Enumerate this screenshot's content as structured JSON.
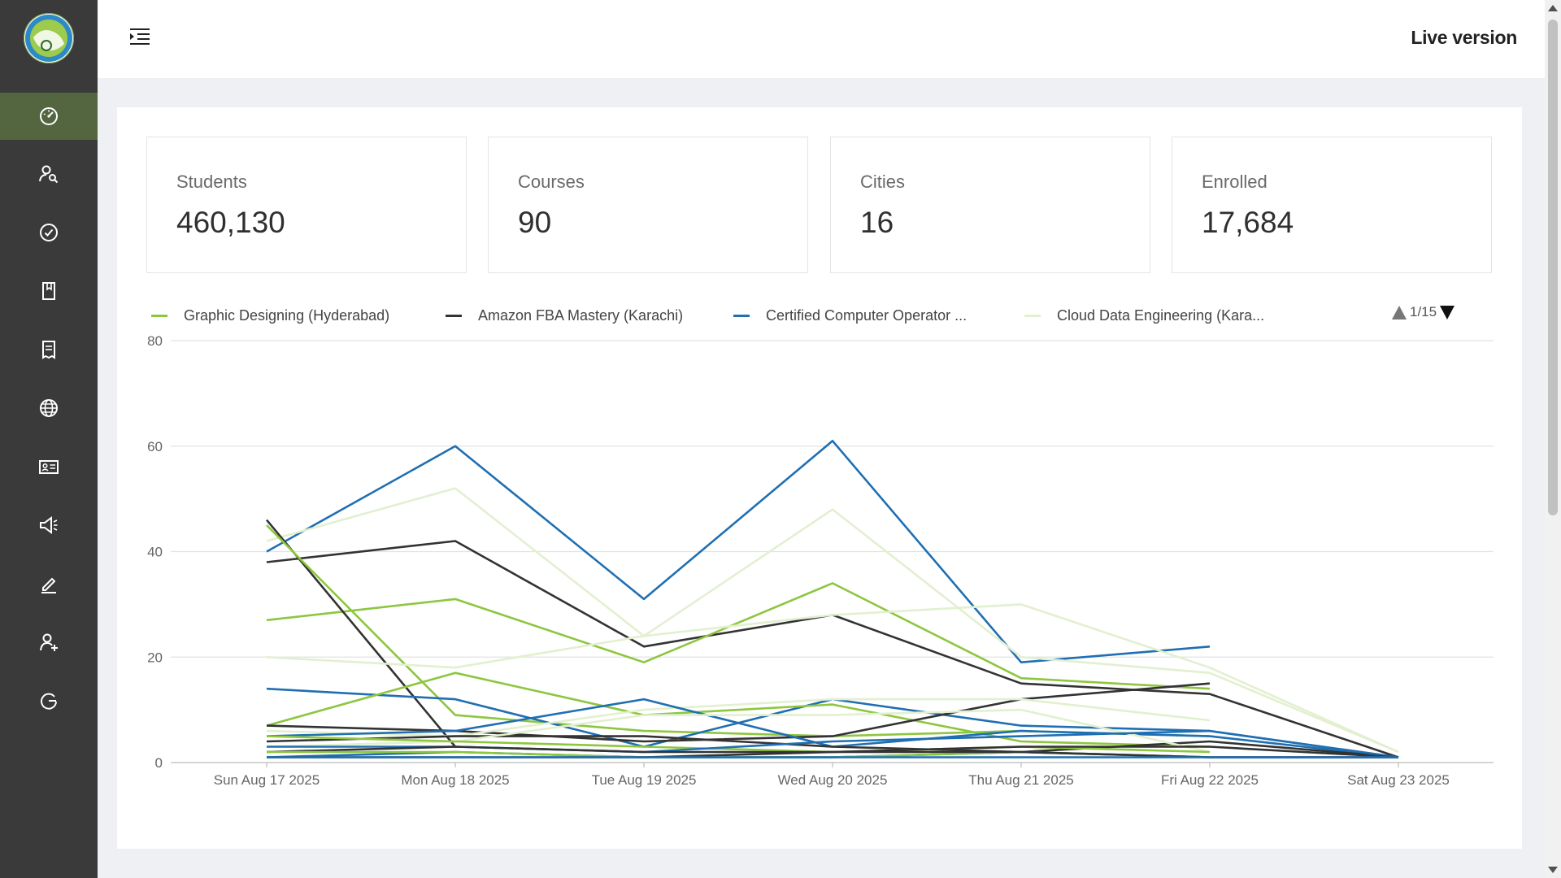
{
  "header": {
    "live_version": "Live version",
    "menu_icon": "indent-menu-icon"
  },
  "sidebar": {
    "logo": "app-logo",
    "items": [
      {
        "name": "dashboard",
        "icon": "speedometer-icon",
        "active": true
      },
      {
        "name": "users",
        "icon": "user-search-icon",
        "active": false
      },
      {
        "name": "verify",
        "icon": "check-circle-icon",
        "active": false
      },
      {
        "name": "bookmark",
        "icon": "bookmark-icon",
        "active": false
      },
      {
        "name": "receipts",
        "icon": "receipt-icon",
        "active": false
      },
      {
        "name": "globe",
        "icon": "globe-icon",
        "active": false
      },
      {
        "name": "id-card",
        "icon": "id-card-icon",
        "active": false
      },
      {
        "name": "announcements",
        "icon": "megaphone-icon",
        "active": false
      },
      {
        "name": "edit",
        "icon": "pencil-icon",
        "active": false
      },
      {
        "name": "add-user",
        "icon": "user-plus-icon",
        "active": false
      },
      {
        "name": "logout",
        "icon": "power-refresh-icon",
        "active": false
      }
    ],
    "active_color": "#54663f",
    "background": "#3a3a3a"
  },
  "stats": [
    {
      "label": "Students",
      "value": "460,130"
    },
    {
      "label": "Courses",
      "value": "90"
    },
    {
      "label": "Cities",
      "value": "16"
    },
    {
      "label": "Enrolled",
      "value": "17,684"
    }
  ],
  "chart_data": {
    "type": "line",
    "categories": [
      "Sun Aug 17 2025",
      "Mon Aug 18 2025",
      "Tue Aug 19 2025",
      "Wed Aug 20 2025",
      "Thu Aug 21 2025",
      "Fri Aug 22 2025",
      "Sat Aug 23 2025"
    ],
    "y_ticks": [
      "0",
      "20",
      "40",
      "60",
      "80"
    ],
    "ylim": [
      0,
      80
    ],
    "grid": true,
    "legend_position": "top",
    "legend": {
      "items": [
        {
          "label": "Graphic Designing (Hyderabad)",
          "color": "#8dc63f"
        },
        {
          "label": "Amazon FBA Mastery (Karachi)",
          "color": "#333333"
        },
        {
          "label": "Certified Computer Operator ...",
          "color": "#1f6fb2"
        },
        {
          "label": "Cloud Data Engineering (Kara...",
          "color": "#e2f0d0"
        }
      ],
      "page_text": "1/15"
    },
    "series": [
      {
        "color": "#1f6fb2",
        "values": [
          40,
          60,
          31,
          61,
          19,
          22,
          null
        ]
      },
      {
        "color": "#e2f0d0",
        "values": [
          42,
          52,
          24,
          48,
          20,
          17,
          2
        ]
      },
      {
        "color": "#333333",
        "values": [
          38,
          42,
          22,
          28,
          15,
          13,
          1
        ]
      },
      {
        "color": "#8dc63f",
        "values": [
          27,
          31,
          19,
          34,
          16,
          14,
          null
        ]
      },
      {
        "color": "#333333",
        "values": [
          46,
          3,
          null,
          null,
          null,
          null,
          null
        ]
      },
      {
        "color": "#8dc63f",
        "values": [
          45,
          9,
          6,
          5,
          6,
          5,
          null
        ]
      },
      {
        "color": "#e2f0d0",
        "values": [
          20,
          18,
          24,
          28,
          30,
          18,
          2
        ]
      },
      {
        "color": "#1f6fb2",
        "values": [
          14,
          12,
          3,
          12,
          7,
          6,
          1
        ]
      },
      {
        "color": "#8dc63f",
        "values": [
          7,
          17,
          9,
          11,
          4,
          3,
          null
        ]
      },
      {
        "color": "#333333",
        "values": [
          7,
          6,
          4,
          5,
          12,
          15,
          null
        ]
      },
      {
        "color": "#e2f0d0",
        "values": [
          6,
          5,
          10,
          12,
          12,
          8,
          null
        ]
      },
      {
        "color": "#1f6fb2",
        "values": [
          5,
          6,
          12,
          3,
          6,
          5,
          1
        ]
      },
      {
        "color": "#333333",
        "values": [
          4,
          5,
          5,
          3,
          2,
          4,
          1
        ]
      },
      {
        "color": "#e2f0d0",
        "values": [
          3,
          4,
          9,
          9,
          10,
          2,
          null
        ]
      },
      {
        "color": "#8dc63f",
        "values": [
          5,
          4,
          3,
          2,
          3,
          2,
          null
        ]
      },
      {
        "color": "#1f6fb2",
        "values": [
          3,
          3,
          2,
          4,
          5,
          6,
          1
        ]
      },
      {
        "color": "#333333",
        "values": [
          2,
          3,
          2,
          2,
          3,
          3,
          1
        ]
      },
      {
        "color": "#1f6fb2",
        "values": [
          1,
          2,
          1,
          1,
          2,
          1,
          1
        ]
      },
      {
        "color": "#8dc63f",
        "values": [
          2,
          2,
          1,
          1,
          2,
          1,
          null
        ]
      },
      {
        "color": "#333333",
        "values": [
          1,
          1,
          1,
          2,
          2,
          1,
          1
        ]
      },
      {
        "color": "#1f6fb2",
        "values": [
          1,
          1,
          1,
          1,
          1,
          1,
          1
        ]
      }
    ]
  }
}
